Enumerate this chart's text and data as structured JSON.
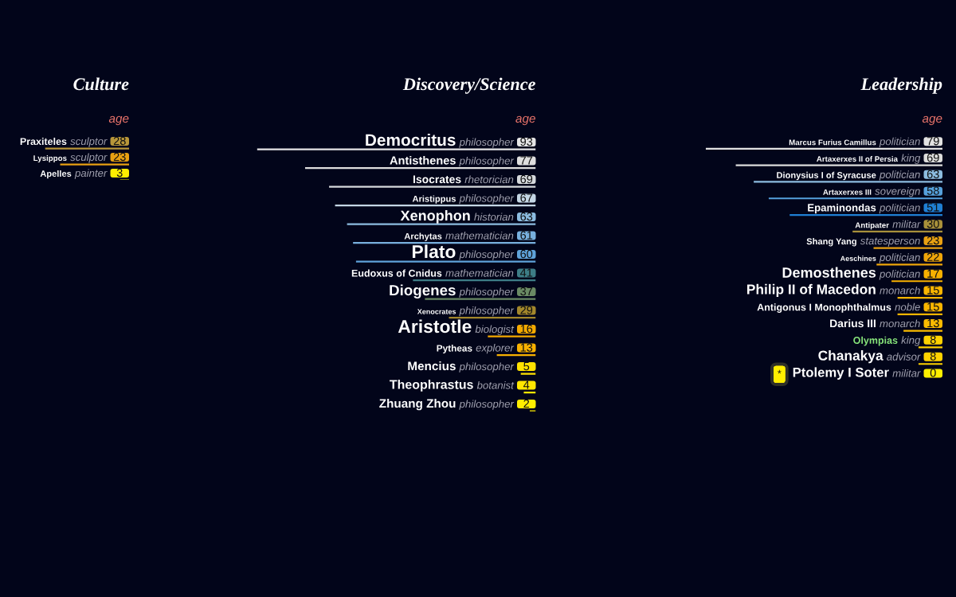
{
  "chart_data": [
    {
      "type": "bar",
      "orientation": "horizontal",
      "title": "Culture",
      "xlabel": "age",
      "tick_labels": "y",
      "data_labels": true,
      "categories": [
        "Praxiteles",
        "Lysippos",
        "Apelles"
      ],
      "y2_categories": [
        "sculptor",
        "sculptor",
        "painter"
      ],
      "values": [
        28,
        23,
        3
      ],
      "colors": [
        "#b8963a",
        "#e8a012",
        "#ffee00"
      ]
    },
    {
      "type": "bar",
      "orientation": "horizontal",
      "title": "Discovery/Science",
      "xlabel": "age",
      "tick_labels": "y",
      "data_labels": true,
      "categories": [
        "Democritus",
        "Antisthenes",
        "Isocrates",
        "Aristippus",
        "Xenophon",
        "Archytas",
        "Plato",
        "Eudoxus of Cnidus",
        "Diogenes",
        "Xenocrates",
        "Aristotle",
        "Pytheas",
        "Mencius",
        "Theophrastus",
        "Zhuang Zhou"
      ],
      "y2_categories": [
        "philosopher",
        "philosopher",
        "rhetorician",
        "philosopher",
        "historian",
        "mathematician",
        "philosopher",
        "mathematician",
        "philosopher",
        "philosopher",
        "biologist",
        "explorer",
        "philosopher",
        "botanist",
        "philosopher"
      ],
      "values": [
        93,
        77,
        69,
        67,
        63,
        61,
        60,
        41,
        37,
        29,
        16,
        13,
        5,
        4,
        2
      ],
      "colors": [
        "#e6e6e6",
        "#dedede",
        "#d6d9dc",
        "#c4d6e4",
        "#8cbce0",
        "#78b0de",
        "#5fa3da",
        "#3d7d86",
        "#6a8a64",
        "#a3872c",
        "#f4a900",
        "#f8b100",
        "#ffe100",
        "#ffe600",
        "#ffee00"
      ]
    },
    {
      "type": "bar",
      "orientation": "horizontal",
      "title": "Leadership",
      "xlabel": "age",
      "tick_labels": "y",
      "data_labels": true,
      "categories": [
        "Marcus Furius Camillus",
        "Artaxerxes II of Persia",
        "Dionysius I of Syracuse",
        "Artaxerxes III",
        "Epaminondas",
        "Antipater",
        "Shang Yang",
        "Aeschines",
        "Demosthenes",
        "Philip II of Macedon",
        "Antigonus I Monophthalmus",
        "Darius III",
        "Olympias",
        "Chanakya",
        "Ptolemy I Soter"
      ],
      "y2_categories": [
        "politician",
        "king",
        "politician",
        "sovereign",
        "politician",
        "militar",
        "statesperson",
        "politician",
        "politician",
        "monarch",
        "noble",
        "monarch",
        "king",
        "advisor",
        "militar"
      ],
      "values": [
        79,
        69,
        63,
        58,
        51,
        30,
        23,
        22,
        17,
        15,
        15,
        13,
        8,
        8,
        0
      ],
      "colors": [
        "#e2e2e2",
        "#dcdcdc",
        "#8cbce0",
        "#55a0dc",
        "#1f7fd4",
        "#a8903a",
        "#e8a012",
        "#eea50a",
        "#f7b000",
        "#f9b500",
        "#f9b500",
        "#fbbb00",
        "#ffd200",
        "#ffd200",
        "#fff000"
      ],
      "annotations": [
        "*"
      ]
    }
  ]
}
